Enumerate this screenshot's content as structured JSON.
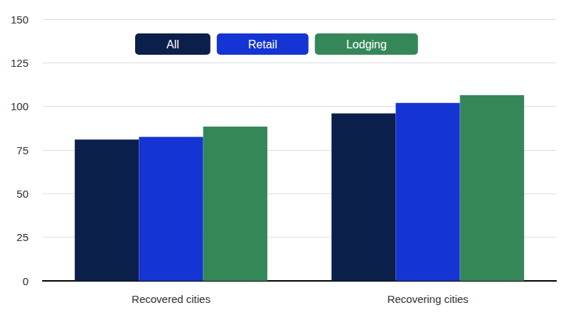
{
  "chart_data": {
    "type": "bar",
    "categories": [
      "Recovered cities",
      "Recovering cities"
    ],
    "series": [
      {
        "name": "All",
        "color": "#0b1f4b",
        "values": [
          81,
          96
        ]
      },
      {
        "name": "Retail",
        "color": "#1534d4",
        "values": [
          82.5,
          102
        ]
      },
      {
        "name": "Lodging",
        "color": "#35875a",
        "values": [
          88.5,
          106.5
        ]
      }
    ],
    "ylim": [
      0,
      150
    ],
    "yticks": [
      0,
      25,
      50,
      75,
      100,
      125,
      150
    ],
    "grid": true,
    "legend": "top-left"
  }
}
